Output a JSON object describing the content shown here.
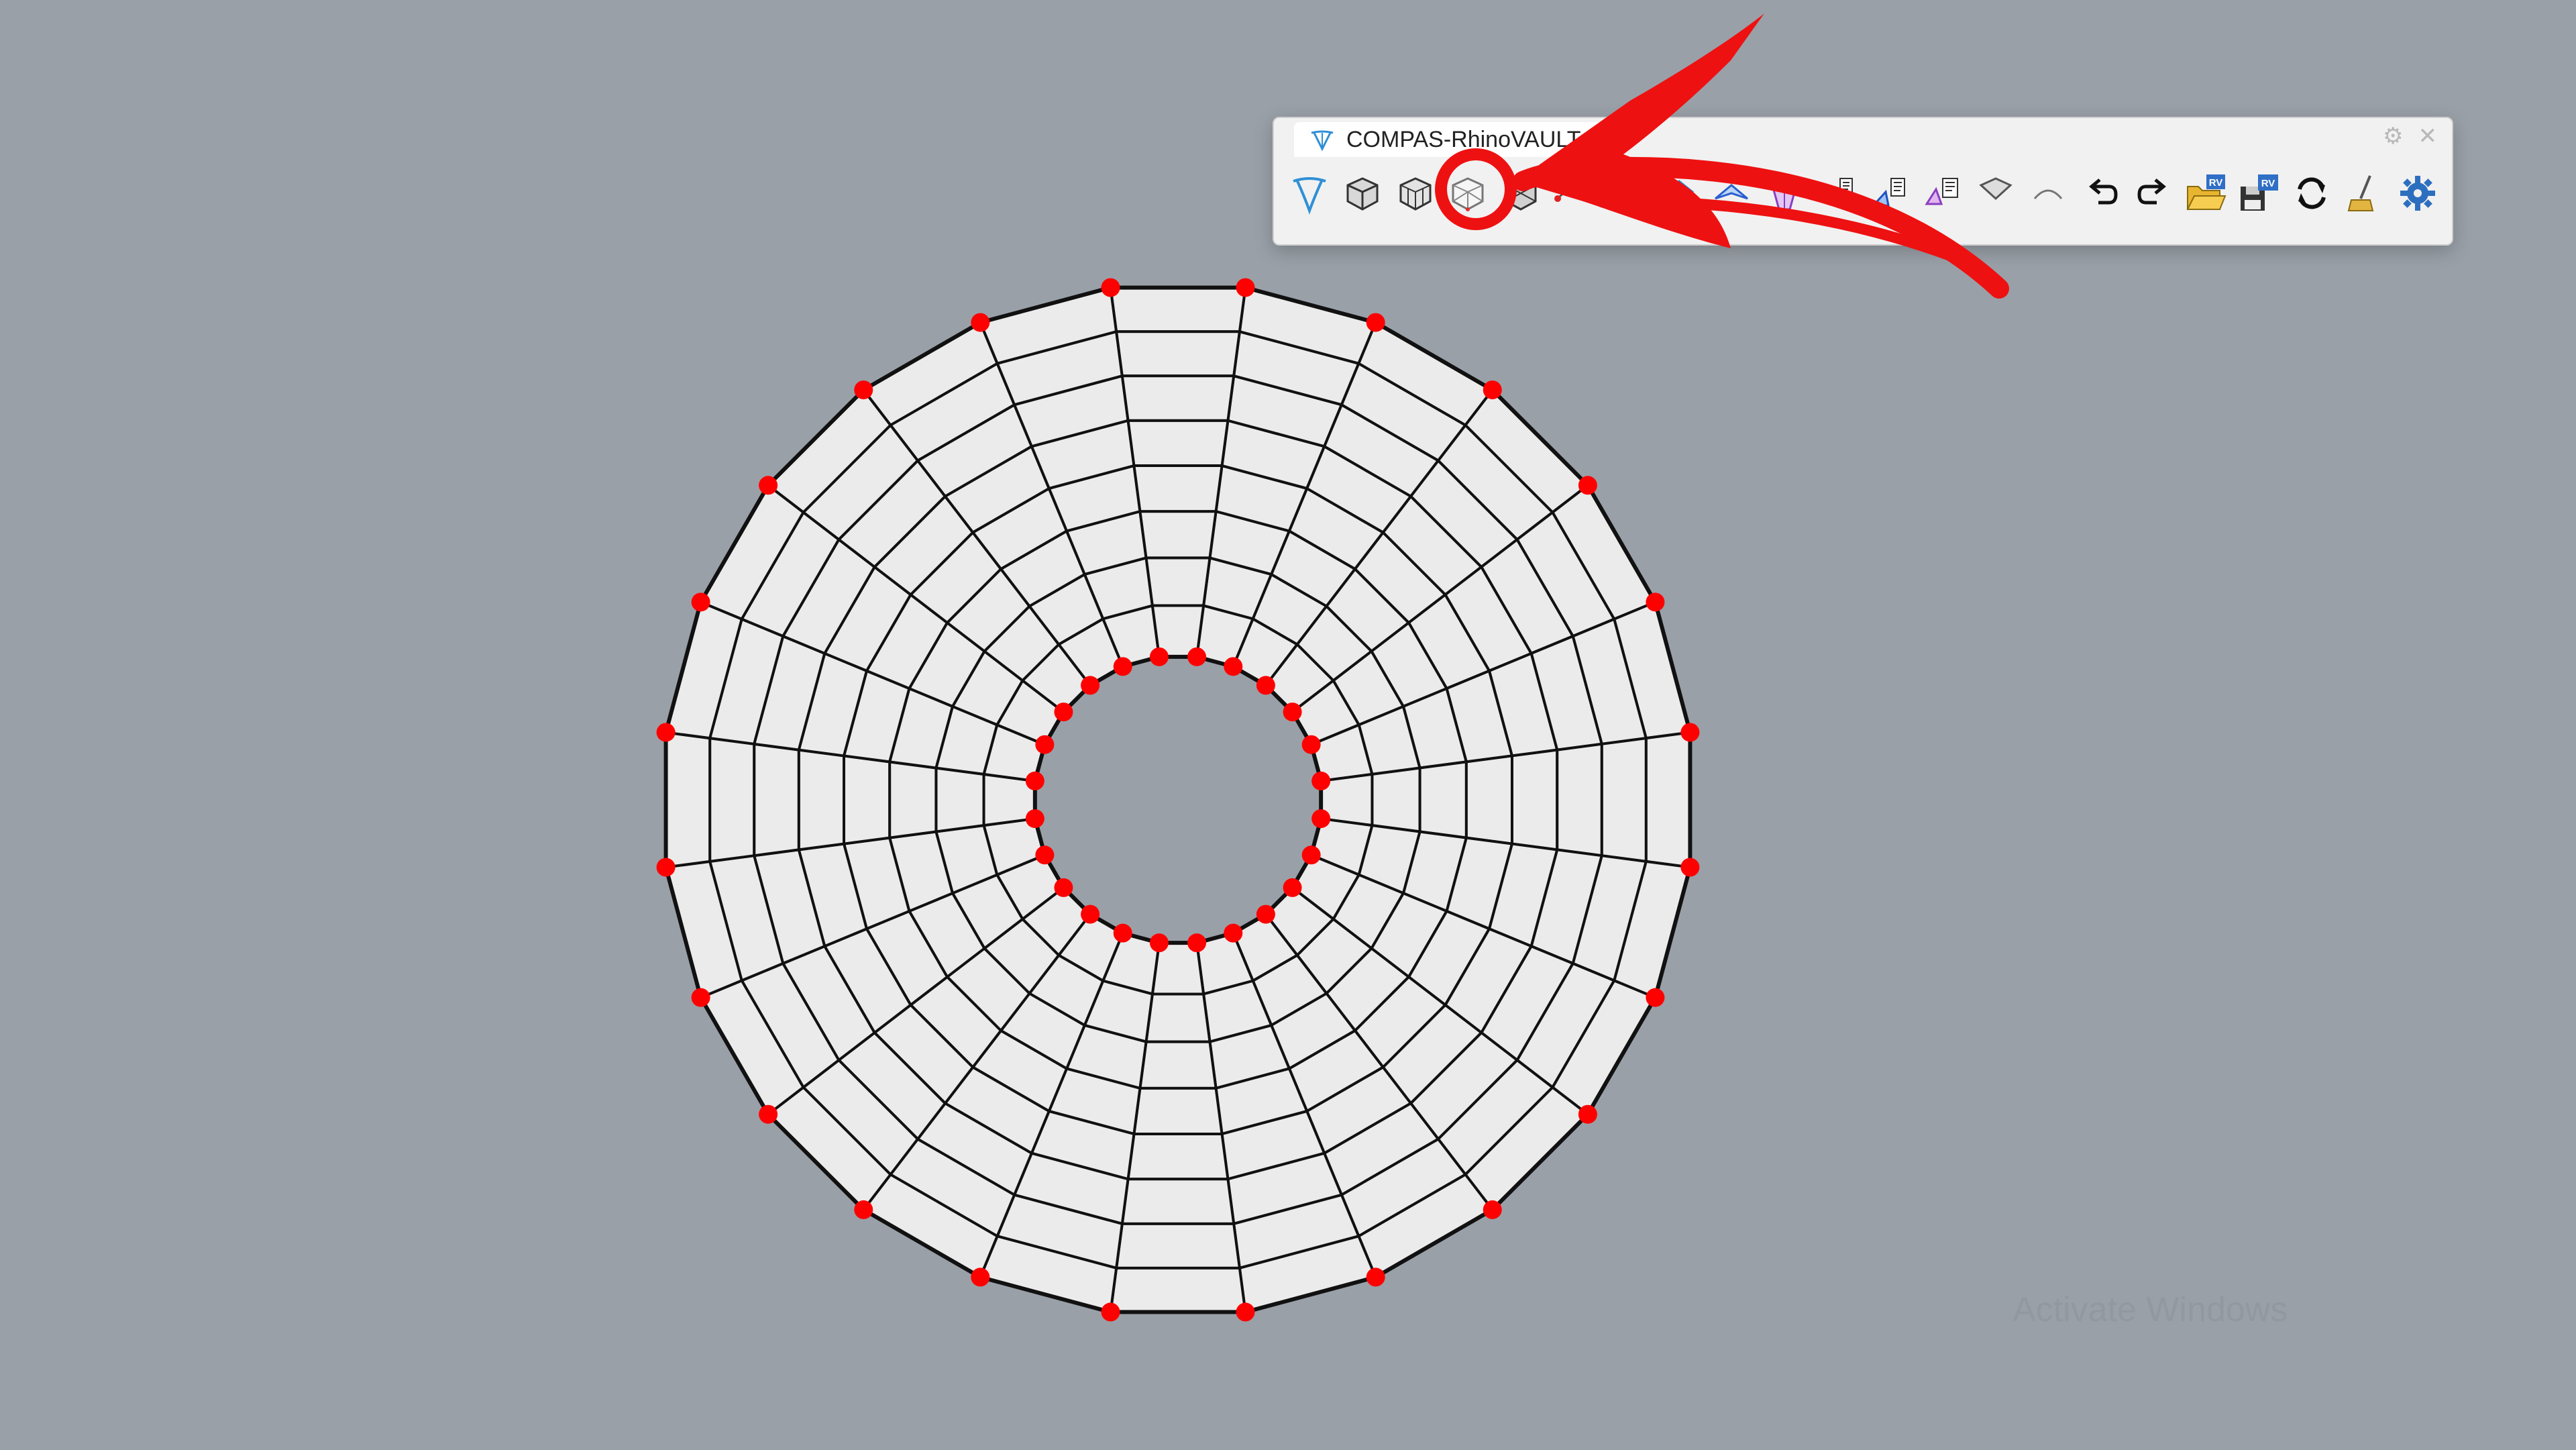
{
  "panel": {
    "title": "COMPAS-RhinoVAULT",
    "tab_icon": "rhinovault-logo-icon",
    "controls": [
      {
        "name": "panel-settings-icon",
        "glyph": "⚙"
      },
      {
        "name": "panel-close-icon",
        "glyph": "✕"
      }
    ]
  },
  "toolbar": {
    "buttons": [
      {
        "name": "rv-init-button",
        "icon": "rhinovault-logo-icon"
      },
      {
        "name": "pattern-from-mesh-button",
        "icon": "pattern-mesh-icon"
      },
      {
        "name": "pattern-from-surface-button",
        "icon": "pattern-surface-icon"
      },
      {
        "name": "pattern-from-triangulation-button",
        "icon": "pattern-triangulation-icon"
      },
      {
        "name": "pattern-modify-button",
        "icon": "pattern-modify-icon"
      },
      {
        "name": "boundary-supports-button",
        "icon": "supports-icon"
      },
      {
        "name": "boundary-openings-button",
        "icon": "openings-icon"
      },
      {
        "name": "form-diagram-button",
        "icon": "form-diagram-icon"
      },
      {
        "name": "force-diagram-button",
        "icon": "force-diagram-icon"
      },
      {
        "name": "thrust-network-button",
        "icon": "thrust-network-icon"
      },
      {
        "name": "horizontal-equilibrium-button",
        "icon": "horizontal-equilibrium-icon"
      },
      {
        "name": "vertical-equilibrium-button",
        "icon": "vertical-equilibrium-icon"
      },
      {
        "name": "modify-form-button",
        "icon": "modify-form-icon"
      },
      {
        "name": "modify-force-button",
        "icon": "modify-force-icon"
      },
      {
        "name": "modify-thrust-button",
        "icon": "modify-thrust-icon"
      },
      {
        "name": "undo-button",
        "icon": "undo-icon"
      },
      {
        "name": "redo-button",
        "icon": "redo-icon"
      },
      {
        "name": "open-session-button",
        "icon": "open-folder-icon",
        "badge": "RV"
      },
      {
        "name": "save-session-button",
        "icon": "save-disk-icon",
        "badge": "RV"
      },
      {
        "name": "reload-button",
        "icon": "reload-icon"
      },
      {
        "name": "clear-button",
        "icon": "broom-icon"
      },
      {
        "name": "settings-button",
        "icon": "settings-gear-icon"
      }
    ],
    "highlighted_button": "pattern-from-triangulation-button"
  },
  "mesh": {
    "segments": 24,
    "rings": 8,
    "edge_color": "#111111",
    "face_color": "#ebebeb",
    "anchor_color": "#ff0000"
  },
  "annotation": {
    "color": "#ee1111",
    "shape": "circle-and-arrow"
  },
  "watermark": "Activate Windows",
  "colors": {
    "viewport_background": "#9aa0a8",
    "panel_background": "#f1f1f1"
  }
}
